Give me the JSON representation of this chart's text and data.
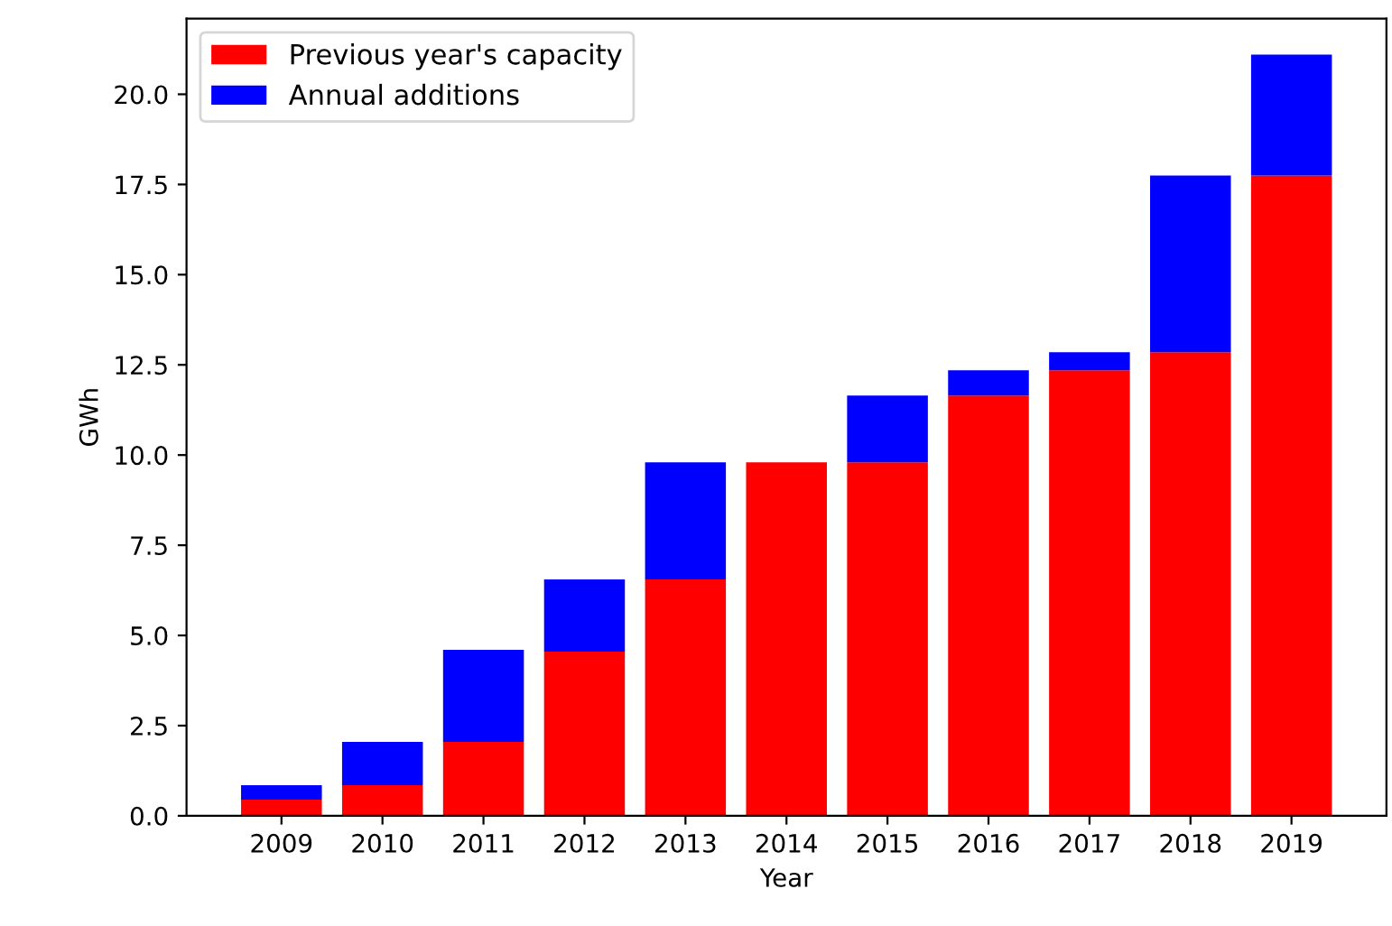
{
  "chart_data": {
    "type": "bar",
    "stacked": true,
    "xlabel": "Year",
    "ylabel": "GWh",
    "categories": [
      "2009",
      "2010",
      "2011",
      "2012",
      "2013",
      "2014",
      "2015",
      "2016",
      "2017",
      "2018",
      "2019"
    ],
    "series": [
      {
        "name": "Previous year's capacity",
        "color": "#ff0000",
        "values": [
          0.45,
          0.85,
          2.05,
          4.55,
          6.55,
          9.8,
          9.8,
          11.65,
          12.35,
          12.85,
          17.75
        ]
      },
      {
        "name": "Annual additions",
        "color": "#0000ff",
        "values": [
          0.4,
          1.2,
          2.55,
          2.0,
          3.25,
          0,
          1.85,
          0.7,
          0.5,
          4.9,
          3.35
        ]
      }
    ],
    "ylim": [
      0,
      22.1
    ],
    "yticks": [
      {
        "value": 0,
        "label": "0.0"
      },
      {
        "value": 2.5,
        "label": "2.5"
      },
      {
        "value": 5,
        "label": "5.0"
      },
      {
        "value": 7.5,
        "label": "7.5"
      },
      {
        "value": 10,
        "label": "10.0"
      },
      {
        "value": 12.5,
        "label": "12.5"
      },
      {
        "value": 15,
        "label": "15.0"
      },
      {
        "value": 17.5,
        "label": "17.5"
      },
      {
        "value": 20,
        "label": "20.0"
      }
    ],
    "grid": false,
    "legend": "top left"
  }
}
